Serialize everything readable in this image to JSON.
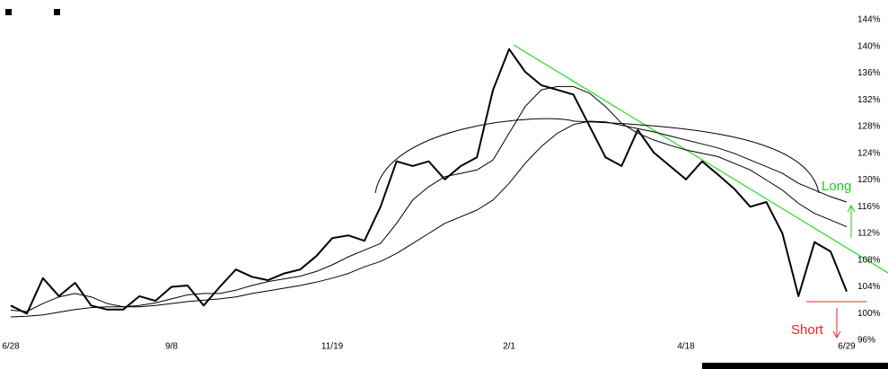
{
  "chart_data": {
    "type": "line",
    "categories": [
      "6/28",
      null,
      null,
      null,
      null,
      null,
      null,
      null,
      null,
      null,
      "9/8",
      null,
      null,
      null,
      null,
      null,
      null,
      null,
      null,
      null,
      "11/19",
      null,
      null,
      null,
      null,
      null,
      null,
      null,
      null,
      null,
      null,
      "2/1",
      null,
      null,
      null,
      null,
      null,
      null,
      null,
      null,
      null,
      null,
      "4/18",
      null,
      null,
      null,
      null,
      null,
      null,
      null,
      null,
      null,
      "6/29"
    ],
    "series": [
      {
        "color": "#000000",
        "values": [
          101.2,
          100,
          105.3,
          102.6,
          104.6,
          101.2,
          100.6,
          100.6,
          102.6,
          101.9,
          104,
          104.2,
          101.2,
          104,
          106.6,
          105.5,
          105,
          106,
          106.6,
          108.6,
          111.3,
          111.7,
          110.9,
          116,
          122.8,
          122.1,
          122.8,
          120.1,
          122.1,
          123.4,
          133.5,
          139.6,
          136.2,
          134.2,
          133.5,
          132.8,
          128.1,
          123.4,
          122.1,
          127.5,
          124.1,
          122.1,
          120.1,
          122.8,
          120.8,
          118.7,
          116,
          116.7,
          112,
          102.6,
          110.7,
          109.3,
          103.3
        ]
      },
      {
        "color": "#000000",
        "values": [
          100.5,
          100.3,
          101.5,
          102.5,
          103,
          102.5,
          101.5,
          101,
          101.2,
          101.6,
          102.2,
          102.8,
          103,
          103,
          103.5,
          104.2,
          104.8,
          105.2,
          105.6,
          106.3,
          107.3,
          108.5,
          109.5,
          110.5,
          113.5,
          117,
          119,
          120.5,
          121,
          121.5,
          123,
          127,
          131,
          133.5,
          134,
          134,
          133,
          131,
          128.5,
          127,
          126,
          125.2,
          124.5,
          124,
          123.5,
          122.5,
          121.5,
          120,
          118.5,
          116.5,
          115,
          114,
          113
        ]
      },
      {
        "color": "#000000",
        "values": [
          99.5,
          99.6,
          99.8,
          100.2,
          100.6,
          100.9,
          101,
          101,
          101,
          101.2,
          101.5,
          101.8,
          102,
          102.2,
          102.5,
          103,
          103.4,
          103.8,
          104.2,
          104.7,
          105.3,
          106,
          107,
          107.8,
          109,
          110.5,
          112,
          113.5,
          114.5,
          115.5,
          117,
          119.5,
          122.5,
          125,
          127,
          128.3,
          128.8,
          128.7,
          128.2,
          127.7,
          127.2,
          126.6,
          126,
          125.4,
          124.8,
          124,
          123,
          122,
          121,
          119.5,
          118.5,
          117.5,
          116.7
        ]
      }
    ],
    "ylim": [
      96,
      144
    ],
    "yticks": [
      {
        "value": 96,
        "label": "96%"
      },
      {
        "value": 100,
        "label": "100%"
      },
      {
        "value": 104,
        "label": "104%"
      },
      {
        "value": 108,
        "label": "108%"
      },
      {
        "value": 112,
        "label": "112%"
      },
      {
        "value": 116,
        "label": "116%"
      },
      {
        "value": 120,
        "label": "120%"
      },
      {
        "value": 124,
        "label": "124%"
      },
      {
        "value": 128,
        "label": "128%"
      },
      {
        "value": 132,
        "label": "132%"
      },
      {
        "value": 136,
        "label": "136%"
      },
      {
        "value": 140,
        "label": "140%"
      },
      {
        "value": 144,
        "label": "144%"
      }
    ],
    "annotations": [
      {
        "text": "Long",
        "color": "#22cc22"
      },
      {
        "text": "Short",
        "color": "#ee2222"
      }
    ]
  }
}
